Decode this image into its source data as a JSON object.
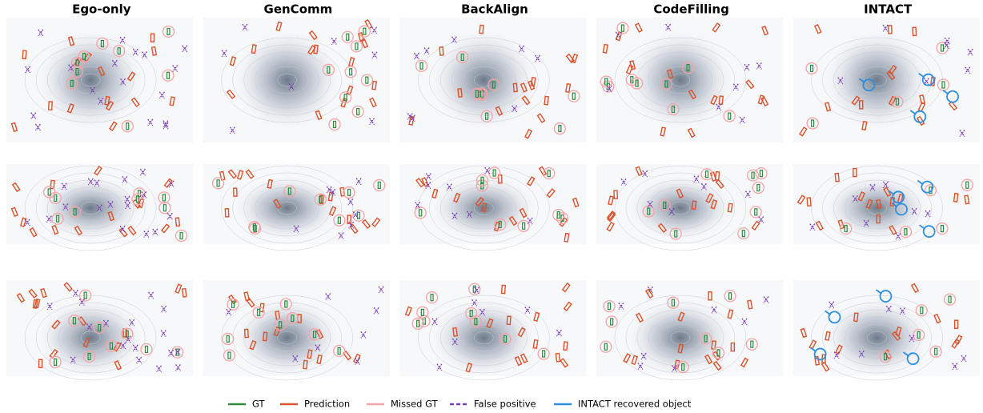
{
  "columns": [
    "Ego-only",
    "GenComm",
    "BackAlign",
    "CodeFilling",
    "INTACT"
  ],
  "legend": [
    {
      "label": "GT",
      "color": "#2e8b3e",
      "style": "solid"
    },
    {
      "label": "Prediction",
      "color": "#d9532c",
      "style": "solid"
    },
    {
      "label": "Missed GT",
      "color": "#f4a3a8",
      "style": "solid"
    },
    {
      "label": "False positive",
      "color": "#7b3fb5",
      "style": "dashed"
    },
    {
      "label": "INTACT recovered object",
      "color": "#2f8fdc",
      "style": "solid"
    }
  ]
}
